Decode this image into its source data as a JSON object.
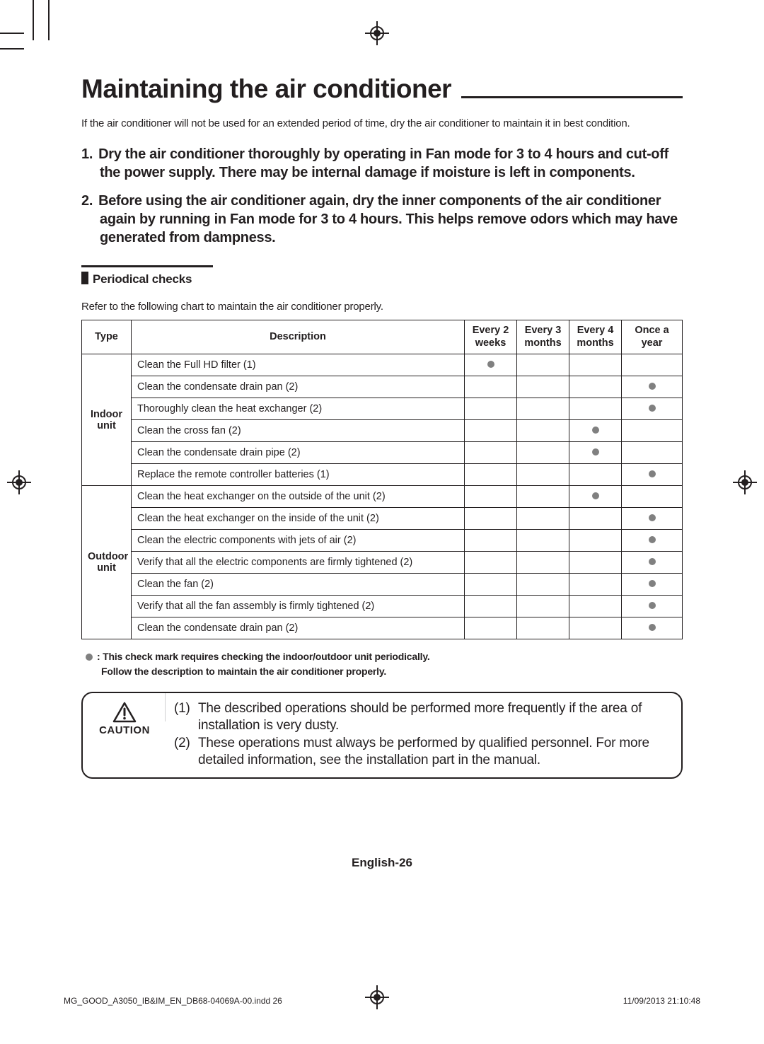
{
  "title": "Maintaining the air conditioner",
  "intro": "If the air conditioner will not be used for an extended period of time, dry the air conditioner to maintain it in best condition.",
  "steps": [
    "Dry the air conditioner thoroughly by operating in Fan mode for 3 to 4 hours and cut-off the power supply. There may be internal damage if moisture is left in components.",
    "Before using the air conditioner again, dry the inner components of the air conditioner again by running in Fan mode for 3 to 4 hours. This helps remove odors which may have generated from dampness."
  ],
  "section": "Periodical checks",
  "chart_intro": "Refer to the following chart to maintain the air conditioner properly.",
  "table": {
    "columns": [
      "Type",
      "Description",
      "Every 2 weeks",
      "Every 3 months",
      "Every 4 months",
      "Once a year"
    ],
    "col_widths": [
      "70px",
      "auto",
      "74px",
      "74px",
      "74px",
      "86px"
    ],
    "groups": [
      {
        "label": "Indoor unit",
        "rows": [
          {
            "desc": "Clean the Full HD filter (1)",
            "checks": [
              true,
              false,
              false,
              false
            ]
          },
          {
            "desc": "Clean the condensate drain pan (2)",
            "checks": [
              false,
              false,
              false,
              true
            ]
          },
          {
            "desc": "Thoroughly clean the heat exchanger (2)",
            "checks": [
              false,
              false,
              false,
              true
            ]
          },
          {
            "desc": "Clean the cross fan (2)",
            "checks": [
              false,
              false,
              true,
              false
            ]
          },
          {
            "desc": "Clean the condensate drain pipe (2)",
            "checks": [
              false,
              false,
              true,
              false
            ]
          },
          {
            "desc": "Replace the remote controller batteries (1)",
            "checks": [
              false,
              false,
              false,
              true
            ]
          }
        ]
      },
      {
        "label": "Outdoor unit",
        "rows": [
          {
            "desc": "Clean the heat exchanger on the outside of the unit (2)",
            "checks": [
              false,
              false,
              true,
              false
            ]
          },
          {
            "desc": "Clean the heat exchanger on the inside of the unit (2)",
            "checks": [
              false,
              false,
              false,
              true
            ]
          },
          {
            "desc": "Clean the electric components with jets of air (2)",
            "checks": [
              false,
              false,
              false,
              true
            ]
          },
          {
            "desc": "Verify that all the electric components are firmly tightened (2)",
            "checks": [
              false,
              false,
              false,
              true
            ]
          },
          {
            "desc": "Clean the fan (2)",
            "checks": [
              false,
              false,
              false,
              true
            ]
          },
          {
            "desc": "Verify that all the fan assembly is firmly tightened (2)",
            "checks": [
              false,
              false,
              false,
              true
            ]
          },
          {
            "desc": "Clean the condensate drain pan (2)",
            "checks": [
              false,
              false,
              false,
              true
            ]
          }
        ]
      }
    ]
  },
  "legend_line1": ":  This check mark requires checking the indoor/outdoor unit periodically.",
  "legend_line2": "Follow the description to maintain the air conditioner properly.",
  "caution_label": "CAUTION",
  "caution_notes": [
    {
      "num": "(1)",
      "text": "The described operations should be performed more frequently if the area of installation is very dusty."
    },
    {
      "num": "(2)",
      "text": "These operations must always be performed by qualified personnel. For more detailed information, see the installation part in the manual."
    }
  ],
  "page_footer": "English-26",
  "slug_left": "MG_GOOD_A3050_IB&IM_EN_DB68-04069A-00.indd   26",
  "slug_right": "11/09/2013   21:10:48",
  "colors": {
    "text": "#231f20",
    "dot": "#808080",
    "sep": "#cfd0d1"
  }
}
